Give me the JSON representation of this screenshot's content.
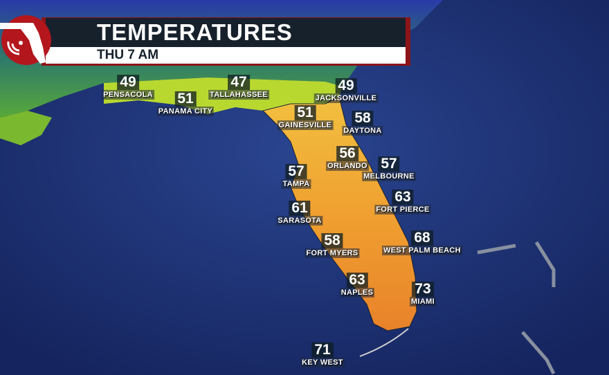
{
  "header": {
    "title": "TEMPERATURES",
    "subtitle": "THU 7 AM"
  },
  "colors": {
    "ocean": "#1b2f72",
    "banner_red": "#8d1418",
    "banner_dark": "#16212c",
    "land_warm": "#f0a030",
    "land_cool": "#c8d830"
  },
  "cities": [
    {
      "name": "PENSACOLA",
      "temp": "49"
    },
    {
      "name": "PANAMA CITY",
      "temp": "51"
    },
    {
      "name": "TALLAHASSEE",
      "temp": "47"
    },
    {
      "name": "JACKSONVILLE",
      "temp": "49"
    },
    {
      "name": "GAINESVILLE",
      "temp": "51"
    },
    {
      "name": "DAYTONA",
      "temp": "58"
    },
    {
      "name": "ORLANDO",
      "temp": "56"
    },
    {
      "name": "TAMPA",
      "temp": "57"
    },
    {
      "name": "MELBOURNE",
      "temp": "57"
    },
    {
      "name": "FORT PIERCE",
      "temp": "63"
    },
    {
      "name": "SARASOTA",
      "temp": "61"
    },
    {
      "name": "WEST PALM BEACH",
      "temp": "68"
    },
    {
      "name": "FORT MYERS",
      "temp": "58"
    },
    {
      "name": "NAPLES",
      "temp": "63"
    },
    {
      "name": "MIAMI",
      "temp": "73"
    },
    {
      "name": "KEY WEST",
      "temp": "71"
    }
  ]
}
